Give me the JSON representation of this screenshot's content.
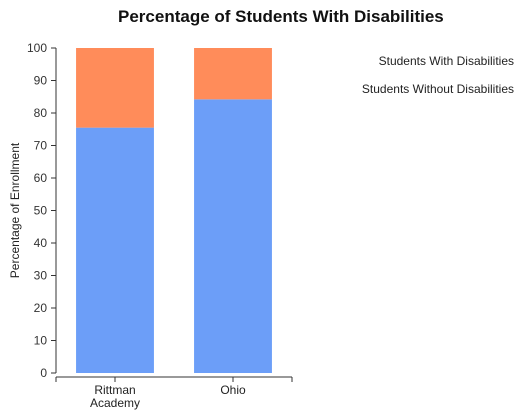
{
  "chart_data": {
    "type": "bar",
    "stacked": true,
    "title": "Percentage of Students With Disabilities",
    "xlabel": "",
    "ylabel": "Percentage of Enrollment",
    "ylim": [
      0,
      100
    ],
    "yticks": [
      0,
      10,
      20,
      30,
      40,
      50,
      60,
      70,
      80,
      90,
      100
    ],
    "categories": [
      [
        "Rittman",
        "Academy"
      ],
      [
        "Ohio"
      ]
    ],
    "series": [
      {
        "name": "Students Without Disabilities",
        "color": "#6c9ef8",
        "values": [
          75.5,
          84.2
        ]
      },
      {
        "name": "Students With Disabilities",
        "color": "#ff8c5a",
        "values": [
          24.5,
          15.8
        ]
      }
    ],
    "legend": {
      "placement": "top-right",
      "items": [
        "Students With Disabilities",
        "Students Without Disabilities"
      ]
    },
    "grid": false
  }
}
